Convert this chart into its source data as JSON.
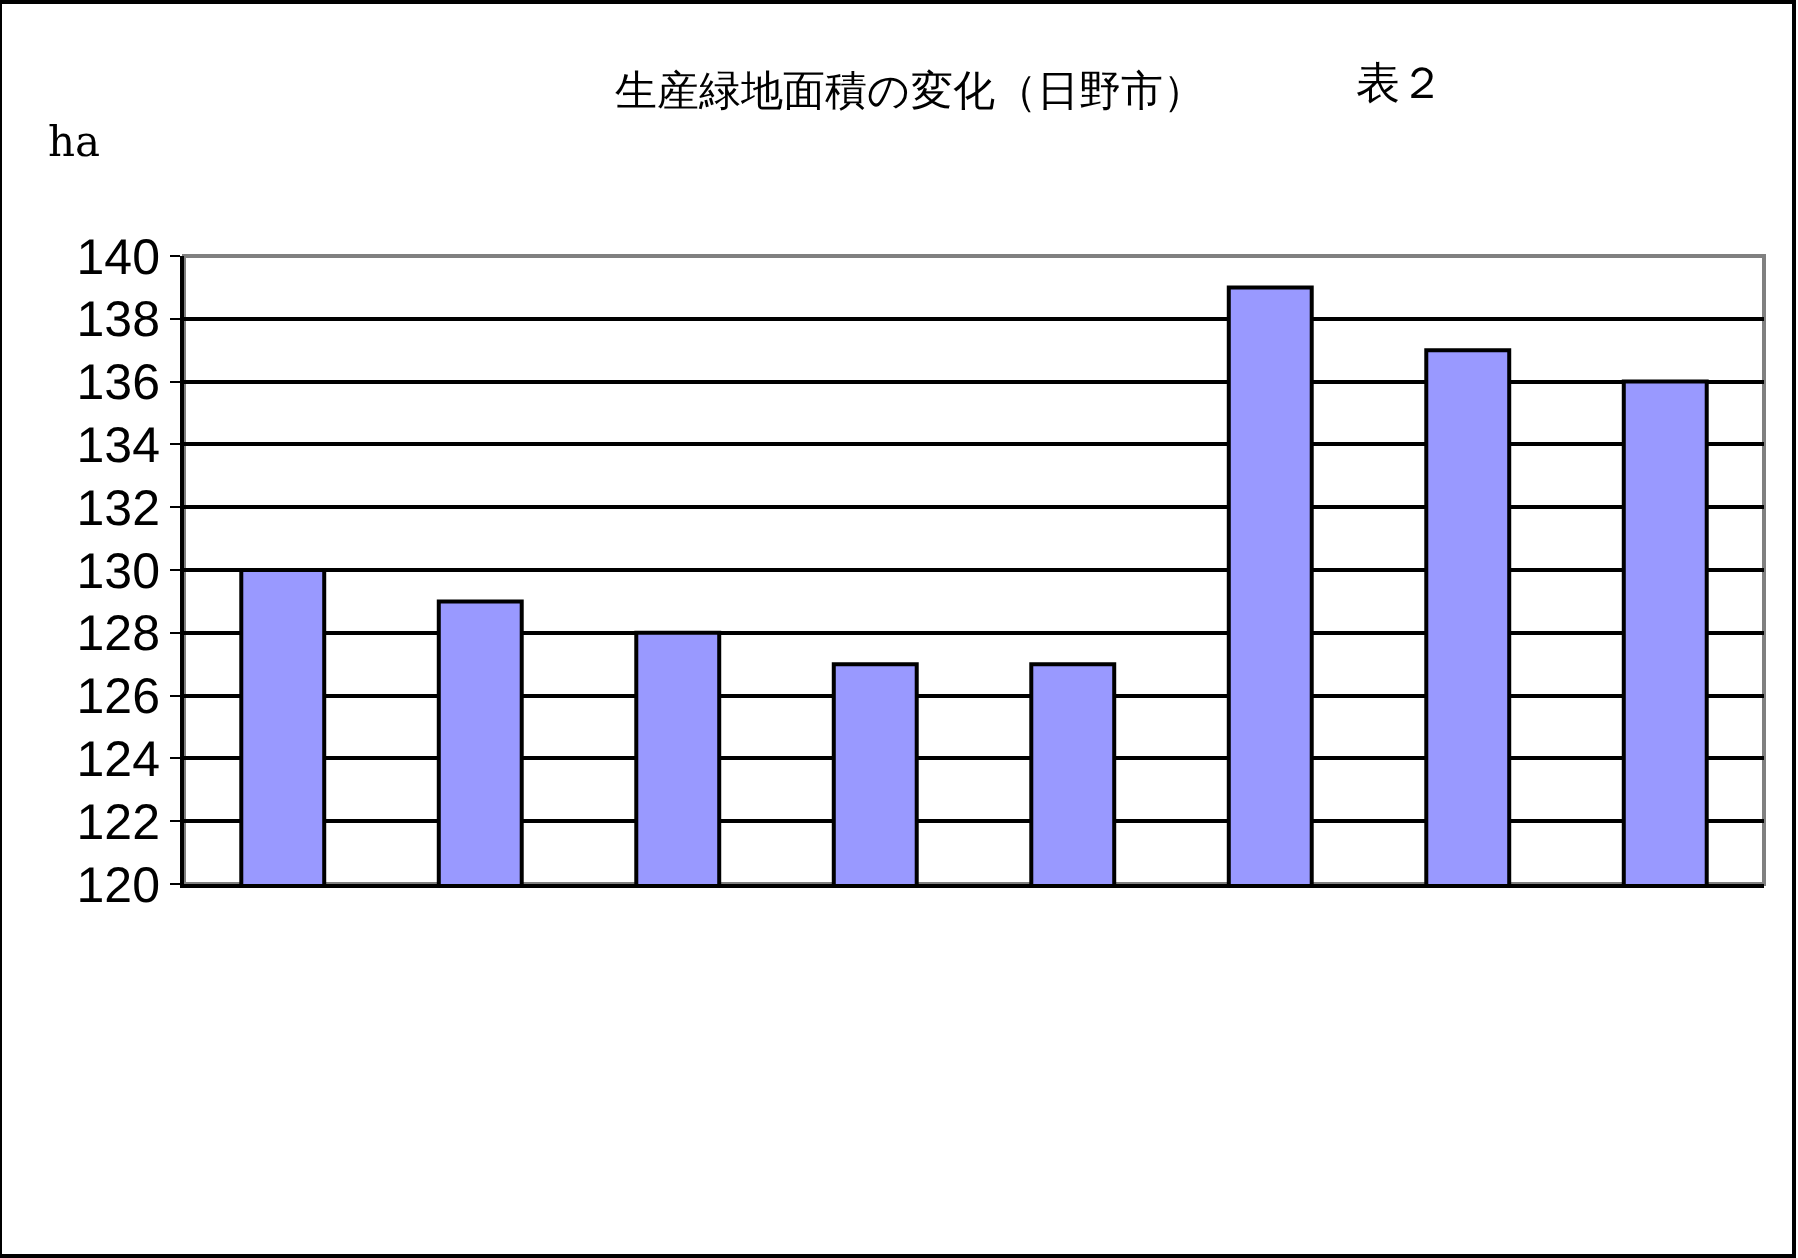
{
  "chart_data": {
    "type": "bar",
    "title": "生産緑地面積の変化（日野市）",
    "ylabel": "ha",
    "annotations": [
      "表２"
    ],
    "categories": [
      null,
      null,
      null,
      null,
      null,
      null,
      null,
      null
    ],
    "values": [
      130,
      129,
      128,
      127,
      127,
      139,
      137,
      136
    ],
    "color": "#9999ff",
    "ylim": [
      120,
      140
    ],
    "yticks": [
      120,
      122,
      124,
      126,
      128,
      130,
      132,
      134,
      136,
      138,
      140
    ],
    "grid": "y",
    "legend": false
  }
}
